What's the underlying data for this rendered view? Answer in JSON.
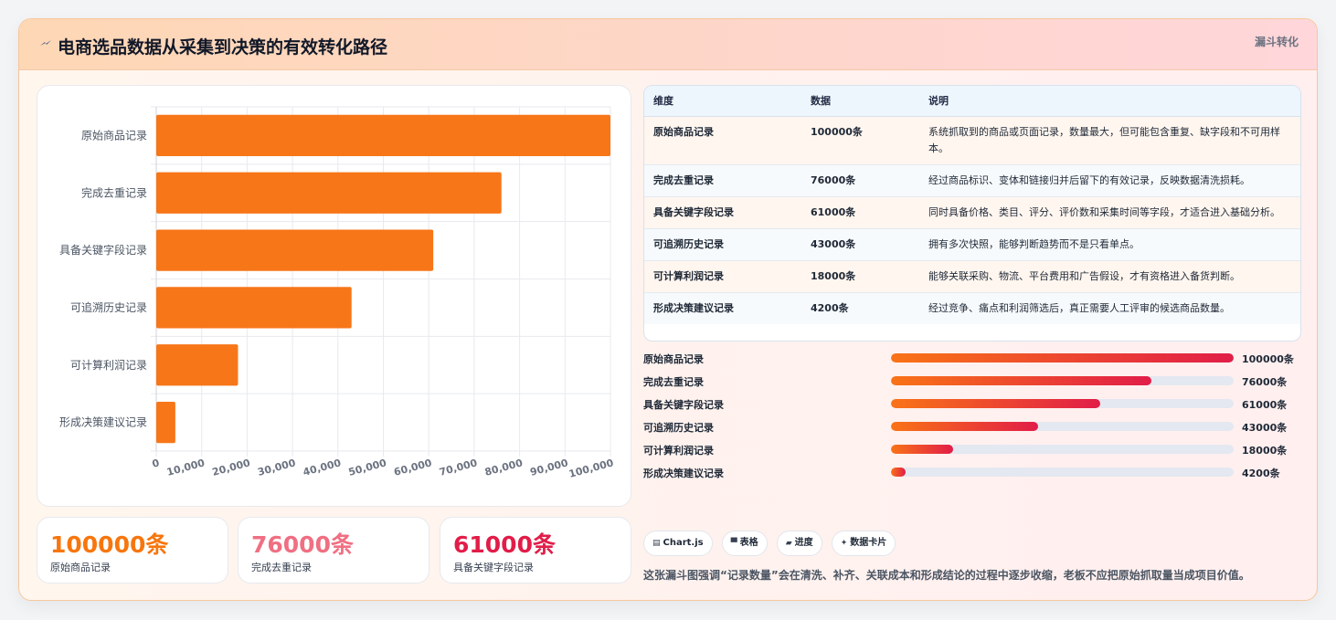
{
  "header": {
    "title": "电商选品数据从采集到决策的有效转化路径",
    "tag": "漏斗转化"
  },
  "chart_data": {
    "type": "bar",
    "orientation": "horizontal",
    "categories": [
      "原始商品记录",
      "完成去重记录",
      "具备关键字段记录",
      "可追溯历史记录",
      "可计算利润记录",
      "形成决策建议记录"
    ],
    "values": [
      100000,
      76000,
      61000,
      43000,
      18000,
      4200
    ],
    "xlim": [
      0,
      100000
    ],
    "xticks": [
      "0",
      "10,000",
      "20,000",
      "30,000",
      "40,000",
      "50,000",
      "60,000",
      "70,000",
      "80,000",
      "90,000",
      "100,000"
    ],
    "grid": true,
    "bar_color": "#f77618"
  },
  "stats": [
    {
      "value": "100000条",
      "label": "原始商品记录",
      "color": "#f7760e"
    },
    {
      "value": "76000条",
      "label": "完成去重记录",
      "color": "#f06f82"
    },
    {
      "value": "61000条",
      "label": "具备关键字段记录",
      "color": "#e11d48"
    }
  ],
  "table": {
    "headers": [
      "维度",
      "数据",
      "说明"
    ],
    "rows": [
      [
        "原始商品记录",
        "100000条",
        "系统抓取到的商品或页面记录，数量最大，但可能包含重复、缺字段和不可用样本。"
      ],
      [
        "完成去重记录",
        "76000条",
        "经过商品标识、变体和链接归并后留下的有效记录，反映数据清洗损耗。"
      ],
      [
        "具备关键字段记录",
        "61000条",
        "同时具备价格、类目、评分、评价数和采集时间等字段，才适合进入基础分析。"
      ],
      [
        "可追溯历史记录",
        "43000条",
        "拥有多次快照，能够判断趋势而不是只看单点。"
      ],
      [
        "可计算利润记录",
        "18000条",
        "能够关联采购、物流、平台费用和广告假设，才有资格进入备货判断。"
      ],
      [
        "形成决策建议记录",
        "4200条",
        "经过竞争、痛点和利润筛选后，真正需要人工评审的候选商品数量。"
      ]
    ]
  },
  "progress": [
    {
      "label": "原始商品记录",
      "value": "100000条",
      "fraction": 1.0
    },
    {
      "label": "完成去重记录",
      "value": "76000条",
      "fraction": 0.76
    },
    {
      "label": "具备关键字段记录",
      "value": "61000条",
      "fraction": 0.61
    },
    {
      "label": "可追溯历史记录",
      "value": "43000条",
      "fraction": 0.43
    },
    {
      "label": "可计算利润记录",
      "value": "18000条",
      "fraction": 0.18
    },
    {
      "label": "形成决策建议记录",
      "value": "4200条",
      "fraction": 0.042
    }
  ],
  "chips": [
    {
      "icon": "chart-icon",
      "label": "Chart.js"
    },
    {
      "icon": "table-icon",
      "label": "表格"
    },
    {
      "icon": "progress-icon",
      "label": "进度"
    },
    {
      "icon": "card-icon",
      "label": "数据卡片"
    }
  ],
  "note": "这张漏斗图强调“记录数量”会在清洗、补齐、关联成本和形成结论的过程中逐步收缩，老板不应把原始抓取量当成项目价值。"
}
